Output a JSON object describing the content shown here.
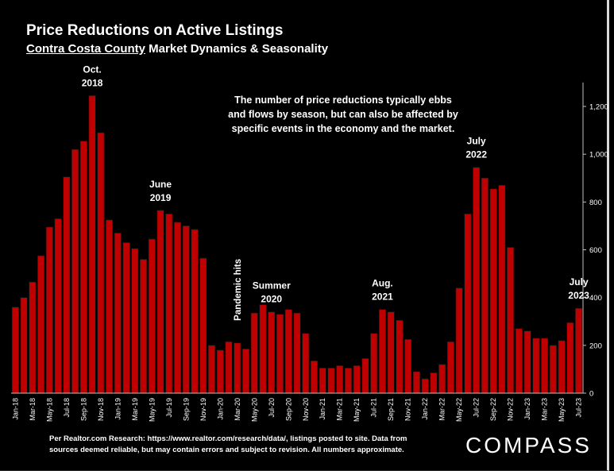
{
  "title": "Price Reductions on Active Listings",
  "subtitle": {
    "underlined": "Contra Costa County",
    "rest": "Market Dynamics & Seasonality"
  },
  "note": [
    "The number of price reductions typically ebbs",
    "and flows by season, but can also be affected by",
    "specific events in the economy and the market."
  ],
  "footnote": [
    "Per Realtor.com Research:  https://www.realtor.com/research/data/, listings posted to site. Data from",
    "sources deemed reliable, but may contain errors and subject to revision. All numbers approximate."
  ],
  "brand": "COMPASS",
  "colors": {
    "bar": "#c00000",
    "background": "#000000",
    "text": "#ffffff"
  },
  "chart_data": {
    "type": "bar",
    "categories": [
      "Jan-18",
      "Feb-18",
      "Mar-18",
      "Apr-18",
      "May-18",
      "Jun-18",
      "Jul-18",
      "Aug-18",
      "Sep-18",
      "Oct-18",
      "Nov-18",
      "Dec-18",
      "Jan-19",
      "Feb-19",
      "Mar-19",
      "Apr-19",
      "May-19",
      "Jun-19",
      "Jul-19",
      "Aug-19",
      "Sep-19",
      "Oct-19",
      "Nov-19",
      "Dec-19",
      "Jan-20",
      "Feb-20",
      "Mar-20",
      "Apr-20",
      "May-20",
      "Jun-20",
      "Jul-20",
      "Aug-20",
      "Sep-20",
      "Oct-20",
      "Nov-20",
      "Dec-20",
      "Jan-21",
      "Feb-21",
      "Mar-21",
      "Apr-21",
      "May-21",
      "Jun-21",
      "Jul-21",
      "Aug-21",
      "Sep-21",
      "Oct-21",
      "Nov-21",
      "Dec-21",
      "Jan-22",
      "Feb-22",
      "Mar-22",
      "Apr-22",
      "May-22",
      "Jun-22",
      "Jul-22",
      "Aug-22",
      "Sep-22",
      "Oct-22",
      "Nov-22",
      "Dec-22",
      "Jan-23",
      "Feb-23",
      "Mar-23",
      "Apr-23",
      "May-23",
      "Jun-23",
      "Jul-23"
    ],
    "values": [
      360,
      400,
      465,
      575,
      695,
      730,
      905,
      1020,
      1055,
      1245,
      1090,
      725,
      670,
      630,
      605,
      560,
      645,
      765,
      750,
      715,
      700,
      685,
      565,
      200,
      180,
      215,
      210,
      185,
      335,
      370,
      340,
      330,
      350,
      335,
      250,
      135,
      105,
      105,
      115,
      105,
      115,
      145,
      250,
      350,
      340,
      305,
      225,
      90,
      60,
      85,
      120,
      215,
      440,
      750,
      945,
      900,
      855,
      870,
      610,
      270,
      260,
      230,
      230,
      200,
      220,
      295,
      355
    ],
    "x_tick_labels": [
      "Jan-18",
      "Mar-18",
      "May-18",
      "Jul-18",
      "Sep-18",
      "Nov-18",
      "Jan-19",
      "Mar-19",
      "May-19",
      "Jul-19",
      "Sep-19",
      "Nov-19",
      "Jan-20",
      "Mar-20",
      "May-20",
      "Jul-20",
      "Sep-20",
      "Nov-20",
      "Jan-21",
      "Mar-21",
      "May-21",
      "Jul-21",
      "Sep-21",
      "Nov-21",
      "Jan-22",
      "Mar-22",
      "May-22",
      "Jul-22",
      "Sep-22",
      "Nov-22",
      "Jan-23",
      "Mar-23",
      "May-23",
      "Jul-23"
    ],
    "y_ticks": [
      0,
      200,
      400,
      600,
      800,
      1000,
      1200
    ],
    "y_tick_labels": [
      "0",
      "200",
      "400",
      "600",
      "800",
      "1,000",
      "1,200"
    ],
    "ylim": [
      0,
      1300
    ],
    "y_axis_side": "right",
    "grid": false,
    "annotations": [
      {
        "index": 9,
        "lines": [
          "Oct.",
          "2018"
        ]
      },
      {
        "index": 17,
        "lines": [
          "June",
          "2019"
        ]
      },
      {
        "index": 26,
        "lines": [
          "Pandemic hits"
        ],
        "rotated": true
      },
      {
        "index": 30,
        "lines": [
          "Summer",
          "2020"
        ]
      },
      {
        "index": 43,
        "lines": [
          "Aug.",
          "2021"
        ]
      },
      {
        "index": 54,
        "lines": [
          "July",
          "2022"
        ]
      },
      {
        "index": 66,
        "lines": [
          "July",
          "2023"
        ]
      }
    ]
  }
}
